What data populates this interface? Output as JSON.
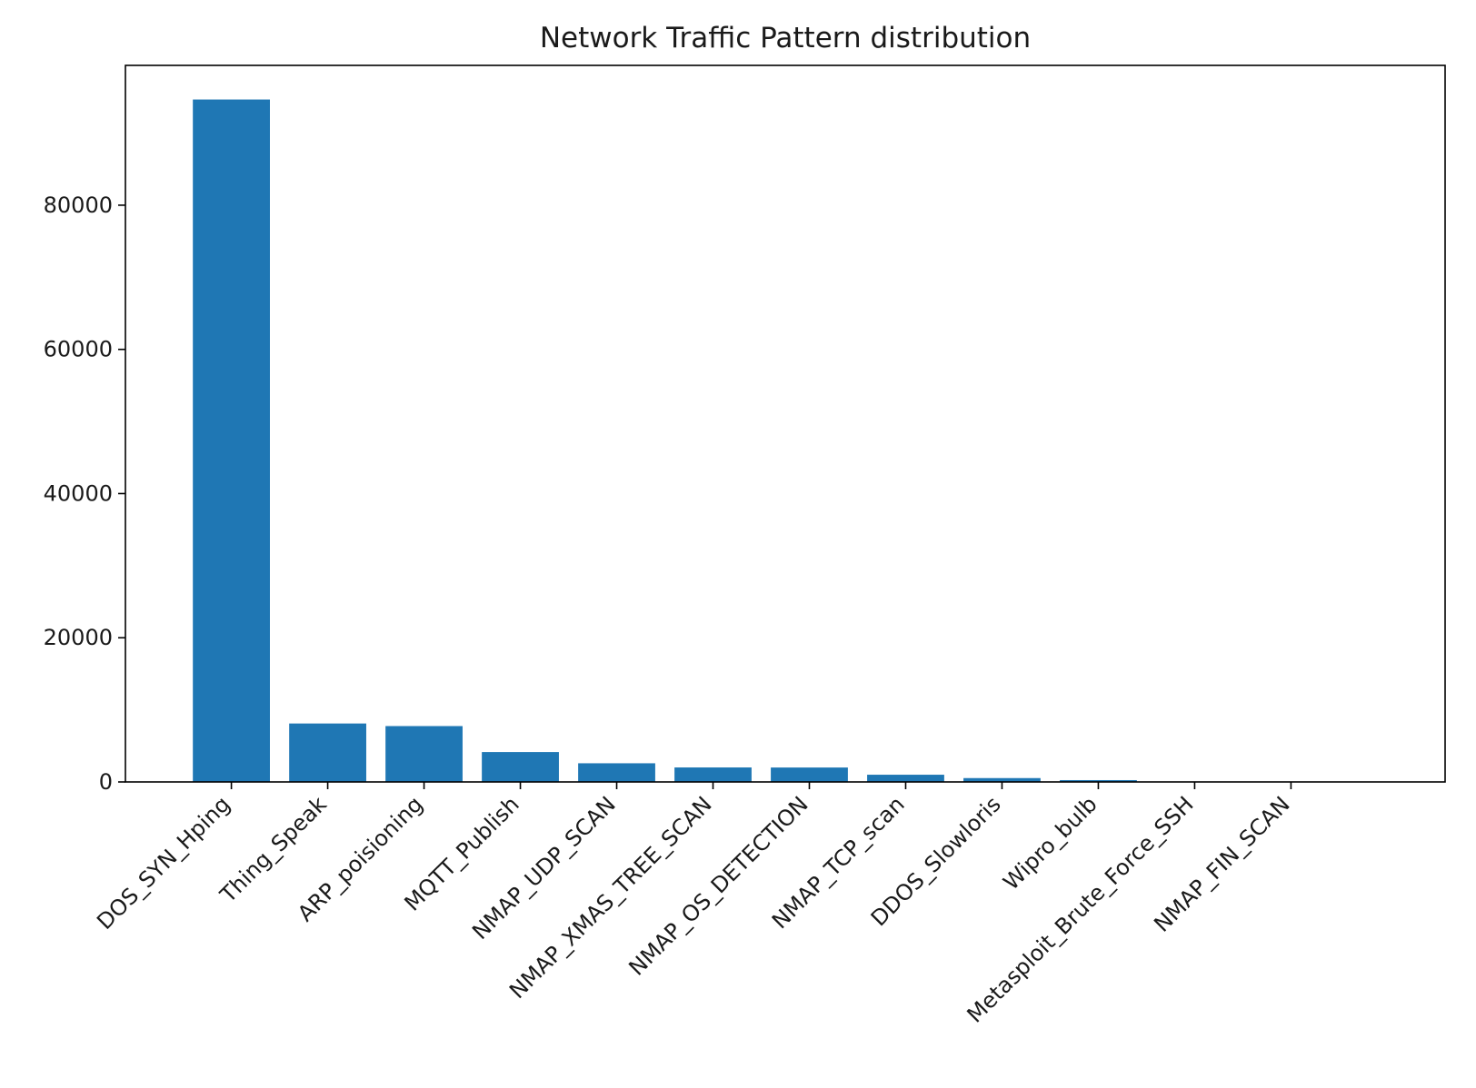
{
  "chart_data": {
    "type": "bar",
    "title": "Network Traffic Pattern distribution",
    "xlabel": "",
    "ylabel": "",
    "categories": [
      "DOS_SYN_Hping",
      "Thing_Speak",
      "ARP_poisioning",
      "MQTT_Publish",
      "NMAP_UDP_SCAN",
      "NMAP_XMAS_TREE_SCAN",
      "NMAP_OS_DETECTION",
      "NMAP_TCP_scan",
      "DDOS_Slowloris",
      "Wipro_bulb",
      "Metasploit_Brute_Force_SSH",
      "NMAP_FIN_SCAN"
    ],
    "values": [
      94659,
      8108,
      7750,
      4146,
      2590,
      2010,
      2000,
      1002,
      534,
      253,
      37,
      28
    ],
    "yticks": [
      0,
      20000,
      40000,
      60000,
      80000
    ],
    "ytick_labels": [
      "0",
      "20000",
      "40000",
      "60000",
      "80000"
    ],
    "ylim": [
      0,
      99392
    ],
    "grid": false,
    "legend": "none",
    "bar_color": "#1f77b4"
  }
}
